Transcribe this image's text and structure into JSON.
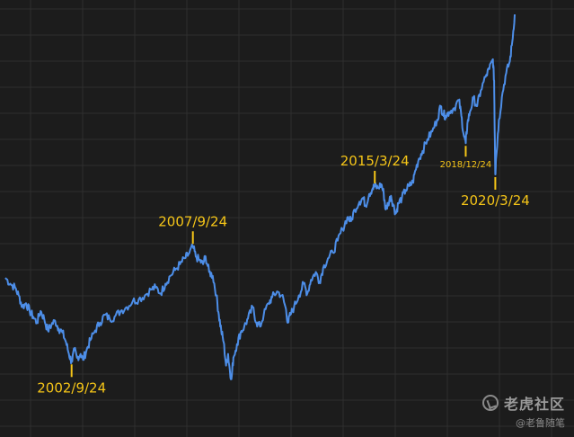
{
  "chart_data": {
    "type": "line",
    "title": "",
    "xlabel": "",
    "ylabel": "",
    "grid": true,
    "legend": "none",
    "xlim": [
      2000.0,
      2021.0
    ],
    "ylim": [
      0,
      100
    ],
    "colors": {
      "background": "#1c1c1c",
      "grid": "#2e2e2e",
      "line": "#4d8ee8",
      "annotation": "#f5c518"
    },
    "series": [
      {
        "values": [
          [
            2000.0,
            29.5
          ],
          [
            2000.2,
            28.0
          ],
          [
            2000.4,
            27.0
          ],
          [
            2000.55,
            25.0
          ],
          [
            2000.7,
            22.0
          ],
          [
            2000.85,
            23.0
          ],
          [
            2001.0,
            21.0
          ],
          [
            2001.15,
            19.5
          ],
          [
            2001.3,
            18.0
          ],
          [
            2001.45,
            21.0
          ],
          [
            2001.6,
            19.0
          ],
          [
            2001.75,
            16.0
          ],
          [
            2001.9,
            17.5
          ],
          [
            2002.05,
            18.5
          ],
          [
            2002.2,
            16.5
          ],
          [
            2002.35,
            15.5
          ],
          [
            2002.5,
            13.0
          ],
          [
            2002.62,
            10.0
          ],
          [
            2002.73,
            8.0
          ],
          [
            2002.85,
            11.0
          ],
          [
            2002.95,
            9.0
          ],
          [
            2003.1,
            10.0
          ],
          [
            2003.2,
            8.5
          ],
          [
            2003.35,
            11.0
          ],
          [
            2003.5,
            13.5
          ],
          [
            2003.7,
            16.0
          ],
          [
            2003.9,
            18.0
          ],
          [
            2004.1,
            20.0
          ],
          [
            2004.3,
            19.0
          ],
          [
            2004.5,
            19.5
          ],
          [
            2004.75,
            21.0
          ],
          [
            2005.0,
            22.0
          ],
          [
            2005.25,
            23.5
          ],
          [
            2005.5,
            24.0
          ],
          [
            2005.75,
            25.0
          ],
          [
            2006.0,
            26.5
          ],
          [
            2006.2,
            27.0
          ],
          [
            2006.4,
            25.5
          ],
          [
            2006.6,
            28.0
          ],
          [
            2006.8,
            30.0
          ],
          [
            2007.0,
            31.5
          ],
          [
            2007.2,
            33.0
          ],
          [
            2007.4,
            34.5
          ],
          [
            2007.55,
            35.5
          ],
          [
            2007.73,
            37.5
          ],
          [
            2007.85,
            35.0
          ],
          [
            2008.0,
            34.0
          ],
          [
            2008.15,
            33.0
          ],
          [
            2008.25,
            35.0
          ],
          [
            2008.4,
            31.0
          ],
          [
            2008.55,
            30.0
          ],
          [
            2008.7,
            25.0
          ],
          [
            2008.8,
            20.0
          ],
          [
            2008.9,
            16.0
          ],
          [
            2009.0,
            13.0
          ],
          [
            2009.1,
            7.0
          ],
          [
            2009.18,
            10.0
          ],
          [
            2009.25,
            6.0
          ],
          [
            2009.32,
            3.5
          ],
          [
            2009.4,
            9.0
          ],
          [
            2009.55,
            12.5
          ],
          [
            2009.7,
            15.5
          ],
          [
            2009.85,
            17.0
          ],
          [
            2010.0,
            19.0
          ],
          [
            2010.2,
            22.0
          ],
          [
            2010.35,
            18.0
          ],
          [
            2010.5,
            17.0
          ],
          [
            2010.65,
            20.0
          ],
          [
            2010.85,
            23.0
          ],
          [
            2011.0,
            24.5
          ],
          [
            2011.2,
            26.0
          ],
          [
            2011.4,
            25.0
          ],
          [
            2011.55,
            22.0
          ],
          [
            2011.65,
            18.0
          ],
          [
            2011.75,
            20.0
          ],
          [
            2011.9,
            22.0
          ],
          [
            2012.1,
            25.0
          ],
          [
            2012.3,
            28.0
          ],
          [
            2012.45,
            25.5
          ],
          [
            2012.6,
            29.0
          ],
          [
            2012.8,
            31.0
          ],
          [
            2012.95,
            28.5
          ],
          [
            2013.1,
            32.0
          ],
          [
            2013.3,
            34.5
          ],
          [
            2013.5,
            36.0
          ],
          [
            2013.7,
            39.0
          ],
          [
            2013.9,
            42.0
          ],
          [
            2014.1,
            45.0
          ],
          [
            2014.25,
            44.0
          ],
          [
            2014.4,
            47.0
          ],
          [
            2014.6,
            49.0
          ],
          [
            2014.75,
            50.0
          ],
          [
            2014.85,
            48.0
          ],
          [
            2015.0,
            51.0
          ],
          [
            2015.15,
            52.5
          ],
          [
            2015.23,
            53.0
          ],
          [
            2015.35,
            52.5
          ],
          [
            2015.5,
            53.5
          ],
          [
            2015.6,
            51.0
          ],
          [
            2015.68,
            47.0
          ],
          [
            2015.78,
            48.5
          ],
          [
            2015.9,
            50.5
          ],
          [
            2016.0,
            48.0
          ],
          [
            2016.1,
            46.0
          ],
          [
            2016.2,
            48.5
          ],
          [
            2016.35,
            50.0
          ],
          [
            2016.5,
            52.0
          ],
          [
            2016.65,
            53.0
          ],
          [
            2016.8,
            54.0
          ],
          [
            2016.9,
            57.0
          ],
          [
            2017.05,
            60.0
          ],
          [
            2017.2,
            62.0
          ],
          [
            2017.4,
            65.0
          ],
          [
            2017.6,
            67.0
          ],
          [
            2017.8,
            70.0
          ],
          [
            2017.95,
            73.5
          ],
          [
            2018.05,
            71.5
          ],
          [
            2018.15,
            71.0
          ],
          [
            2018.3,
            72.0
          ],
          [
            2018.5,
            73.0
          ],
          [
            2018.7,
            75.0
          ],
          [
            2018.8,
            71.0
          ],
          [
            2018.9,
            66.0
          ],
          [
            2018.98,
            64.0
          ],
          [
            2019.05,
            69.0
          ],
          [
            2019.15,
            72.0
          ],
          [
            2019.3,
            75.5
          ],
          [
            2019.45,
            73.5
          ],
          [
            2019.6,
            77.5
          ],
          [
            2019.8,
            81.0
          ],
          [
            2019.95,
            83.0
          ],
          [
            2020.1,
            85.5
          ],
          [
            2020.15,
            80.0
          ],
          [
            2020.18,
            65.0
          ],
          [
            2020.2,
            56.0
          ],
          [
            2020.23,
            60.0
          ],
          [
            2020.35,
            70.0
          ],
          [
            2020.5,
            77.0
          ],
          [
            2020.65,
            82.0
          ],
          [
            2020.8,
            85.0
          ],
          [
            2020.9,
            90.0
          ],
          [
            2021.0,
            97.0
          ]
        ]
      }
    ],
    "annotations": [
      {
        "label": "2002/9/24",
        "x": 2002.73,
        "y": 8.0,
        "label_side": "below",
        "size": "large"
      },
      {
        "label": "2007/9/24",
        "x": 2007.73,
        "y": 37.5,
        "label_side": "above",
        "size": "large"
      },
      {
        "label": "2015/3/24",
        "x": 2015.23,
        "y": 53.0,
        "label_side": "above",
        "size": "large"
      },
      {
        "label": "2018/12/24",
        "x": 2018.98,
        "y": 64.0,
        "label_side": "below",
        "size": "small"
      },
      {
        "label": "2020/3/24",
        "x": 2020.2,
        "y": 56.0,
        "label_side": "below",
        "size": "large"
      }
    ]
  },
  "watermark": {
    "logo_icon": "tiger-community-logo-icon",
    "title": "老虎社区",
    "subtitle": "@老鲁随笔"
  }
}
